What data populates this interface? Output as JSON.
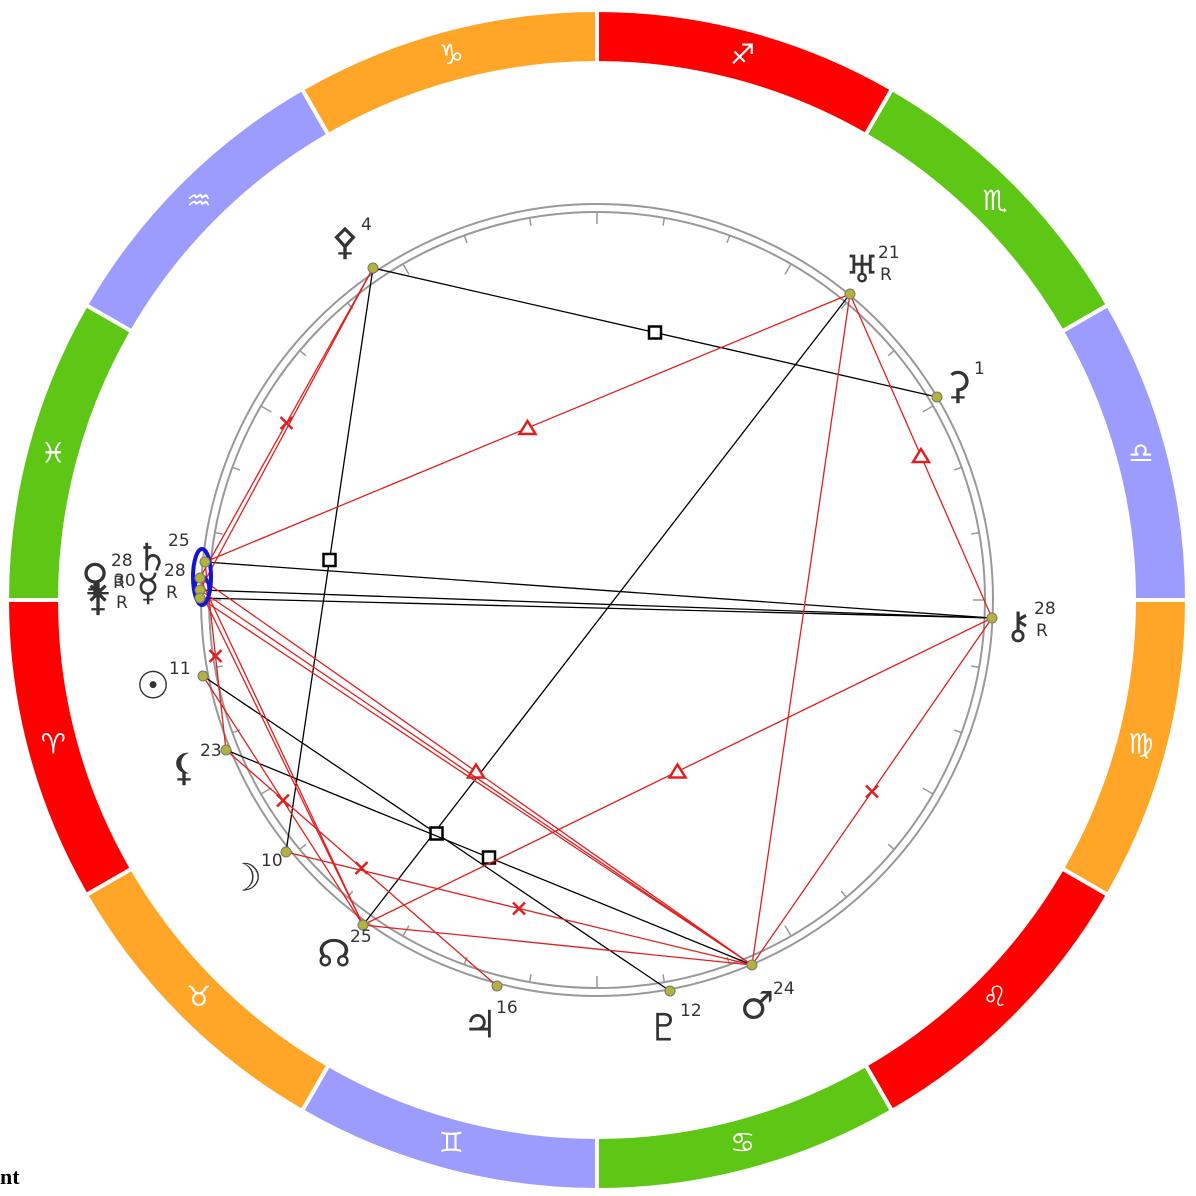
{
  "signs": [
    "♐︎",
    "♏︎",
    "♎︎",
    "♍︎",
    "♌︎",
    "♋︎",
    "♊︎",
    "♉︎",
    "♈︎",
    "♓︎",
    "♒︎",
    "♑︎"
  ],
  "planets": [
    {
      "glyph": "⚴",
      "degree": "4"
    },
    {
      "glyph": "♅",
      "degree": "21",
      "retro": "R"
    },
    {
      "glyph": "⚳",
      "degree": "1"
    },
    {
      "glyph": "⚷",
      "degree": "28",
      "retro": "R"
    },
    {
      "glyph": "♄",
      "degree": "25"
    },
    {
      "glyph": "♀",
      "degree": "28",
      "retro": "R"
    },
    {
      "glyph": "☿",
      "degree": "28",
      "retro": "R"
    },
    {
      "glyph": "⚵",
      "degree": "30",
      "retro": "R"
    },
    {
      "glyph": "☉",
      "degree": "11"
    },
    {
      "glyph": "⚸",
      "degree": "23"
    },
    {
      "glyph": "☽",
      "degree": "10"
    },
    {
      "glyph": "☊",
      "degree": "25"
    },
    {
      "glyph": "♃",
      "degree": "16"
    },
    {
      "glyph": "♇",
      "degree": "12"
    },
    {
      "glyph": "♂",
      "degree": "24"
    }
  ],
  "footer": "nt"
}
